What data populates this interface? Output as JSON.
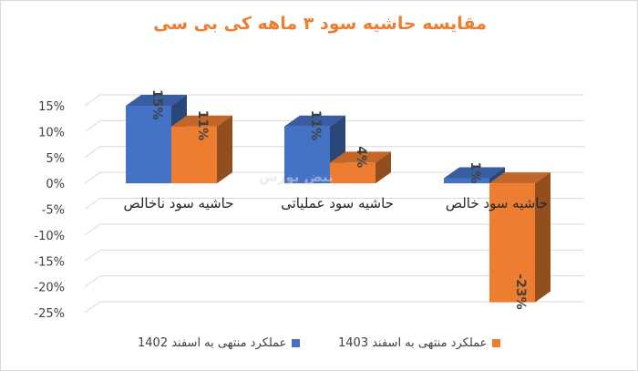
{
  "chart_data": {
    "type": "bar",
    "title": "مقایسه حاشیه سود ۳ ماهه کی بی سی",
    "categories": [
      "حاشیه سود ناخالص",
      "حاشیه سود عملیاتی",
      "حاشیه سود خالص"
    ],
    "series": [
      {
        "name": "عملکرد منتهی به اسفند 1402",
        "color": "#4472c4",
        "values": [
          15,
          11,
          1
        ],
        "labels": [
          "15%",
          "11%",
          "1%"
        ]
      },
      {
        "name": "عملکرد منتهی به اسفند 1403",
        "color": "#ed7d31",
        "values": [
          11,
          4,
          -23
        ],
        "labels": [
          "11%",
          "4%",
          "-23%"
        ]
      }
    ],
    "yticks": [
      "15%",
      "10%",
      "5%",
      "0%",
      "-5%",
      "-10%",
      "-15%",
      "-20%",
      "-25%"
    ],
    "ylim": [
      -25,
      15
    ],
    "xlabel": "",
    "ylabel": "",
    "legend_position": "bottom",
    "grid": true
  },
  "watermark": "نبض بورس"
}
